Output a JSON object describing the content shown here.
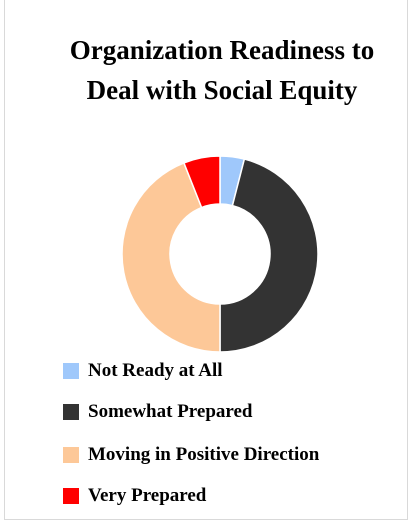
{
  "chart_data": {
    "type": "donut",
    "title": "Organization Readiness to Deal with Social Equity",
    "categories": [
      "Not Ready at All",
      "Somewhat Prepared",
      "Moving in Positive Direction",
      "Very Prepared"
    ],
    "values": [
      4,
      46,
      44,
      6
    ],
    "colors": [
      "#9fc8fb",
      "#333333",
      "#fdc898",
      "#ff0000"
    ],
    "legend": "bottom"
  }
}
